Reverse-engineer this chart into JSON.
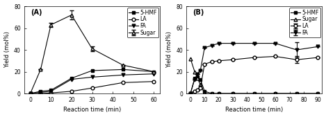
{
  "panel_A": {
    "title": "(A)",
    "xlabel": "Reaction time (min)",
    "ylabel": "Yield (mol%)",
    "xlim": [
      -3,
      63
    ],
    "ylim": [
      0,
      80
    ],
    "yticks": [
      0,
      20,
      40,
      60,
      80
    ],
    "xticks": [
      0,
      10,
      20,
      30,
      40,
      50,
      60
    ],
    "series": {
      "5-HMF": {
        "x": [
          0,
          5,
          10,
          20,
          30,
          45,
          60
        ],
        "y": [
          0,
          2,
          3,
          14,
          21,
          22,
          20
        ],
        "yerr": [
          0,
          0,
          0,
          0,
          0,
          0,
          0
        ],
        "marker": "s",
        "marker_fill": "black"
      },
      "LA": {
        "x": [
          0,
          5,
          10,
          20,
          30,
          45,
          60
        ],
        "y": [
          0,
          0,
          0.5,
          2,
          5,
          10,
          11
        ],
        "yerr": [
          0,
          0,
          0,
          0,
          0,
          0,
          0
        ],
        "marker": "o",
        "marker_fill": "white"
      },
      "FA": {
        "x": [
          0,
          5,
          10,
          20,
          30,
          45,
          60
        ],
        "y": [
          0,
          1,
          2,
          13,
          15,
          17,
          18
        ],
        "yerr": [
          0,
          0,
          0,
          0,
          0,
          0,
          0
        ],
        "marker": "v",
        "marker_fill": "black"
      },
      "Sugar": {
        "x": [
          0,
          5,
          10,
          20,
          30,
          45,
          60
        ],
        "y": [
          0,
          22,
          63,
          72,
          41,
          26,
          20
        ],
        "yerr": [
          0,
          0,
          2,
          4,
          2,
          0,
          0
        ],
        "marker": "^",
        "marker_fill": "white"
      }
    }
  },
  "panel_B": {
    "title": "(B)",
    "xlabel": "Reaction time (min)",
    "ylabel": "Yield (mol%)",
    "xlim": [
      -3,
      93
    ],
    "ylim": [
      0,
      80
    ],
    "yticks": [
      0,
      20,
      40,
      60,
      80
    ],
    "xticks": [
      0,
      10,
      20,
      30,
      40,
      50,
      60,
      70,
      80,
      90
    ],
    "series": {
      "5-HMF": {
        "x": [
          0,
          3,
          5,
          7,
          10,
          15,
          20,
          30,
          45,
          60,
          75,
          90
        ],
        "y": [
          0,
          14,
          15,
          13,
          2,
          0,
          0,
          0,
          0,
          0,
          0,
          0
        ],
        "yerr": [
          0,
          0,
          0,
          0,
          0,
          0,
          0,
          0,
          0,
          0,
          0,
          0
        ],
        "marker": "s",
        "marker_fill": "black"
      },
      "LA": {
        "x": [
          0,
          3,
          5,
          7,
          10,
          15,
          20,
          30,
          45,
          60,
          75,
          90
        ],
        "y": [
          0,
          2,
          3,
          5,
          27,
          29,
          30,
          31,
          33,
          34,
          31,
          33
        ],
        "yerr": [
          0,
          0,
          0,
          0,
          0,
          0,
          0,
          0,
          0,
          0,
          3,
          0
        ],
        "marker": "o",
        "marker_fill": "white"
      },
      "FA": {
        "x": [
          0,
          3,
          5,
          7,
          10,
          15,
          20,
          30,
          45,
          60,
          75,
          90
        ],
        "y": [
          0,
          13,
          18,
          21,
          42,
          44,
          46,
          46,
          46,
          46,
          40,
          43
        ],
        "yerr": [
          0,
          0,
          0,
          0,
          0,
          0,
          0,
          0,
          0,
          0,
          7,
          0
        ],
        "marker": "v",
        "marker_fill": "black"
      },
      "Sugar": {
        "x": [
          0,
          3,
          5,
          7,
          10,
          15,
          20,
          30,
          45,
          60,
          75,
          90
        ],
        "y": [
          32,
          20,
          14,
          8,
          0,
          0,
          0,
          0,
          0,
          0,
          0,
          0
        ],
        "yerr": [
          0,
          0,
          0,
          0,
          0,
          0,
          0,
          0,
          0,
          0,
          0,
          0
        ],
        "marker": "^",
        "marker_fill": "white"
      }
    }
  },
  "legend_order": [
    "5-HMF",
    "LA",
    "FA",
    "Sugar"
  ],
  "marker_size": 3.5,
  "linewidth": 0.8,
  "font_size": 5.5,
  "title_font_size": 7,
  "axis_label_font_size": 6,
  "tick_label_font_size": 5.5
}
